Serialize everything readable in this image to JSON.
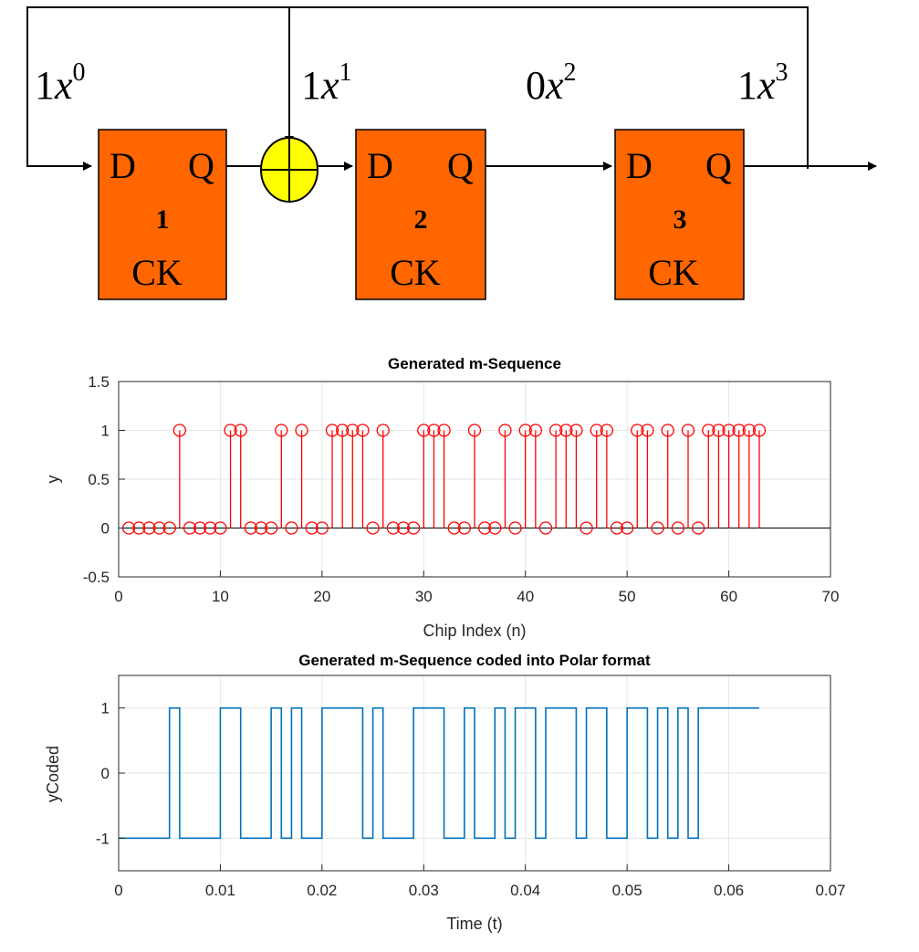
{
  "diagram": {
    "feedback_labels": [
      {
        "coef": "1",
        "var": "x",
        "exp": "0"
      },
      {
        "coef": "1",
        "var": "x",
        "exp": "1"
      },
      {
        "coef": "0",
        "var": "x",
        "exp": "2"
      },
      {
        "coef": "1",
        "var": "x",
        "exp": "3"
      }
    ],
    "registers": [
      {
        "d": "D",
        "q": "Q",
        "index": "1",
        "ck": "CK"
      },
      {
        "d": "D",
        "q": "Q",
        "index": "2",
        "ck": "CK"
      },
      {
        "d": "D",
        "q": "Q",
        "index": "3",
        "ck": "CK"
      }
    ],
    "colors": {
      "register_fill": "#ff6600",
      "xor_fill": "#ffff00"
    }
  },
  "chart_data": [
    {
      "type": "stem",
      "title": "Generated m-Sequence",
      "xlabel": "Chip Index (n)",
      "ylabel": "y",
      "xlim": [
        0,
        70
      ],
      "ylim": [
        -0.5,
        1.5
      ],
      "xticks": [
        "0",
        "10",
        "20",
        "30",
        "40",
        "50",
        "60",
        "70"
      ],
      "yticks": [
        "-0.5",
        "0",
        "0.5",
        "1",
        "1.5"
      ],
      "grid": true,
      "color": "#ff0000",
      "x": [
        1,
        2,
        3,
        4,
        5,
        6,
        7,
        8,
        9,
        10,
        11,
        12,
        13,
        14,
        15,
        16,
        17,
        18,
        19,
        20,
        21,
        22,
        23,
        24,
        25,
        26,
        27,
        28,
        29,
        30,
        31,
        32,
        33,
        34,
        35,
        36,
        37,
        38,
        39,
        40,
        41,
        42,
        43,
        44,
        45,
        46,
        47,
        48,
        49,
        50,
        51,
        52,
        53,
        54,
        55,
        56,
        57,
        58,
        59,
        60,
        61,
        62,
        63
      ],
      "y": [
        0,
        0,
        0,
        0,
        0,
        1,
        0,
        0,
        0,
        0,
        1,
        1,
        0,
        0,
        0,
        1,
        0,
        1,
        0,
        0,
        1,
        1,
        1,
        1,
        0,
        1,
        0,
        0,
        0,
        1,
        1,
        1,
        0,
        0,
        1,
        0,
        0,
        1,
        0,
        1,
        1,
        0,
        1,
        1,
        1,
        0,
        1,
        1,
        0,
        0,
        1,
        1,
        0,
        1,
        0,
        1,
        0,
        1,
        1,
        1,
        1,
        1,
        1
      ]
    },
    {
      "type": "line",
      "title": "Generated m-Sequence coded into Polar format",
      "xlabel": "Time (t)",
      "ylabel": "yCoded",
      "xlim": [
        0,
        0.07
      ],
      "ylim": [
        -1.5,
        1.5
      ],
      "xticks": [
        "0",
        "0.01",
        "0.02",
        "0.03",
        "0.04",
        "0.05",
        "0.06",
        "0.07"
      ],
      "yticks": [
        "-1",
        "0",
        "1"
      ],
      "grid": true,
      "color": "#0072bd",
      "chip_duration": 0.001
    }
  ]
}
